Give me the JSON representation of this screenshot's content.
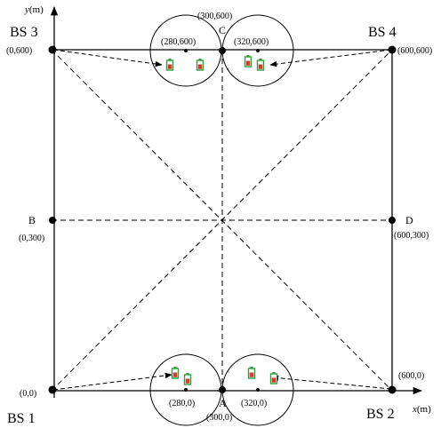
{
  "axes": {
    "x_label_var": "x",
    "x_label_unit": "(m)",
    "y_label_var": "y",
    "y_label_unit": "(m)"
  },
  "base_stations": [
    {
      "id": "bs1",
      "label": "BS 1",
      "coord": "(0,0)"
    },
    {
      "id": "bs2",
      "label": "BS 2",
      "coord": "(600,0)"
    },
    {
      "id": "bs3",
      "label": "BS 3",
      "coord": "(0,600)"
    },
    {
      "id": "bs4",
      "label": "BS 4",
      "coord": "(600,600)"
    }
  ],
  "points": [
    {
      "id": "A",
      "label": "A",
      "coord": "(300,0)"
    },
    {
      "id": "B",
      "label": "B",
      "coord": "(0,300)"
    },
    {
      "id": "C",
      "label": "C",
      "coord": "(300,600)"
    },
    {
      "id": "D",
      "label": "D",
      "coord": "(600,300)"
    }
  ],
  "cluster_centers": [
    {
      "id": "c1",
      "coord": "(280,0)"
    },
    {
      "id": "c2",
      "coord": "(320,0)"
    },
    {
      "id": "c3",
      "coord": "(280,600)"
    },
    {
      "id": "c4",
      "coord": "(320,600)"
    }
  ],
  "icons": {
    "device": "battery-device-icon"
  },
  "colors": {
    "line": "#000000",
    "device_green": "#2e9e3e",
    "device_red": "#d83a2a"
  }
}
